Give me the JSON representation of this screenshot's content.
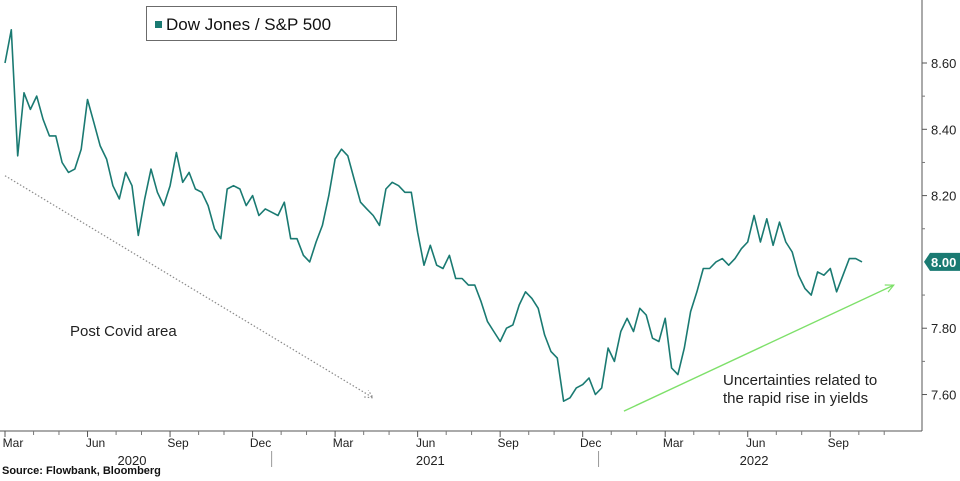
{
  "chart_data": {
    "type": "line",
    "series": [
      {
        "name": "Dow Jones / S&P 500",
        "color": "#1a7a72",
        "values": [
          8.6,
          8.7,
          8.32,
          8.51,
          8.46,
          8.5,
          8.43,
          8.38,
          8.38,
          8.3,
          8.27,
          8.28,
          8.34,
          8.49,
          8.42,
          8.35,
          8.31,
          8.23,
          8.19,
          8.27,
          8.23,
          8.08,
          8.19,
          8.28,
          8.21,
          8.17,
          8.23,
          8.33,
          8.24,
          8.27,
          8.22,
          8.21,
          8.17,
          8.1,
          8.07,
          8.22,
          8.23,
          8.22,
          8.17,
          8.2,
          8.14,
          8.16,
          8.15,
          8.14,
          8.18,
          8.07,
          8.07,
          8.02,
          8.0,
          8.06,
          8.11,
          8.2,
          8.31,
          8.34,
          8.32,
          8.25,
          8.18,
          8.16,
          8.14,
          8.11,
          8.22,
          8.24,
          8.23,
          8.21,
          8.21,
          8.09,
          7.99,
          8.05,
          7.99,
          7.98,
          8.02,
          7.95,
          7.95,
          7.93,
          7.93,
          7.88,
          7.82,
          7.79,
          7.76,
          7.8,
          7.81,
          7.87,
          7.91,
          7.89,
          7.86,
          7.78,
          7.73,
          7.71,
          7.58,
          7.59,
          7.62,
          7.63,
          7.65,
          7.6,
          7.62,
          7.74,
          7.7,
          7.79,
          7.83,
          7.79,
          7.86,
          7.84,
          7.77,
          7.76,
          7.83,
          7.68,
          7.66,
          7.74,
          7.85,
          7.91,
          7.98,
          7.98,
          8.0,
          8.01,
          7.99,
          8.01,
          8.04,
          8.06,
          8.14,
          8.06,
          8.13,
          8.05,
          8.12,
          8.06,
          8.03,
          7.96,
          7.92,
          7.9,
          7.97,
          7.96,
          7.98,
          7.91,
          7.96,
          8.01,
          8.01,
          8.0
        ]
      }
    ],
    "legend": {
      "label": "Dow Jones / S&P 500",
      "placement": "top-left"
    },
    "ylim": [
      7.49,
      8.79
    ],
    "yticks": [
      {
        "value": 8.6,
        "label": "8.60"
      },
      {
        "value": 8.4,
        "label": "8.40"
      },
      {
        "value": 8.2,
        "label": "8.20"
      },
      {
        "value": 7.8,
        "label": "7.80"
      },
      {
        "value": 7.6,
        "label": "7.60"
      }
    ],
    "last_value": {
      "value": 8.0,
      "label": "8.00"
    },
    "xticks": [
      {
        "index": 0,
        "label": "Mar"
      },
      {
        "index": 13,
        "label": "Jun"
      },
      {
        "index": 26,
        "label": "Sep"
      },
      {
        "index": 39,
        "label": "Dec"
      },
      {
        "index": 52,
        "label": "Mar"
      },
      {
        "index": 65,
        "label": "Jun"
      },
      {
        "index": 78,
        "label": "Sep"
      },
      {
        "index": 91,
        "label": "Dec"
      },
      {
        "index": 104,
        "label": "Mar"
      },
      {
        "index": 117,
        "label": "Jun"
      },
      {
        "index": 130,
        "label": "Sep"
      }
    ],
    "minor_ticks": [
      4.5,
      8.5,
      17.5,
      21.5,
      30.5,
      34.5,
      43.5,
      47.5,
      56.5,
      60.5,
      69.5,
      73.5,
      82.5,
      86.5,
      95.5,
      99.5,
      108.5,
      112.5,
      121.5,
      125.5,
      134.5,
      138.5
    ],
    "years": [
      {
        "label": "2020",
        "center": 20,
        "end": 42
      },
      {
        "label": "2021",
        "center": 67,
        "end": 93.5
      },
      {
        "label": "2022",
        "center": 118,
        "end": null
      }
    ],
    "annotations": [
      {
        "id": "post-covid",
        "lines": [
          "Post Covid area"
        ],
        "color": "#222222"
      },
      {
        "id": "uncertainties",
        "lines": [
          "Uncertainties related to",
          "the rapid rise in yields"
        ],
        "color": "#222222"
      }
    ],
    "trend_arrows": [
      {
        "id": "down",
        "from": {
          "index": 0,
          "value": 8.26
        },
        "to": {
          "index": 58,
          "value": 7.59
        },
        "color": "#8a8a8a",
        "style": "dotted"
      },
      {
        "id": "up",
        "from": {
          "index": 97.5,
          "value": 7.55
        },
        "to": {
          "index": 140,
          "value": 7.93
        },
        "color": "#7ee06a",
        "style": "solid"
      }
    ],
    "xlabel": "",
    "ylabel": ""
  },
  "source": "Source: Flowbank, Bloomberg"
}
